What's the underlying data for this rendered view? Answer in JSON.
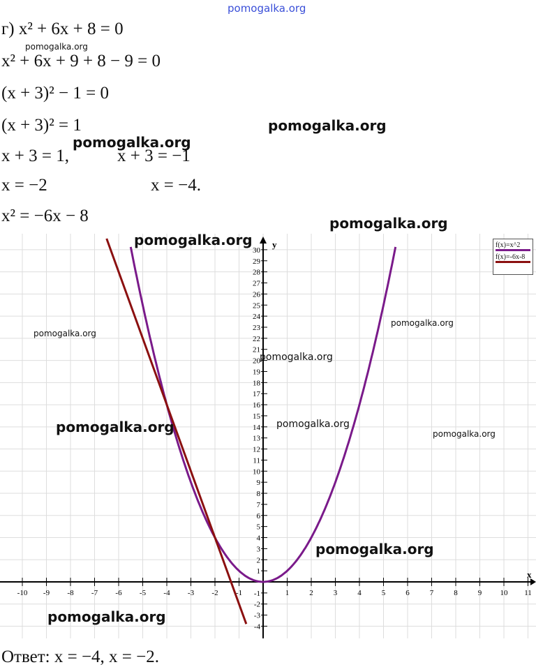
{
  "solution": {
    "lines": [
      "г) x² + 6x + 8 = 0",
      "x² + 6x + 9 + 8 − 9 = 0",
      "(x + 3)² − 1 = 0",
      "(x + 3)² = 1",
      "x + 3 = 1,",
      "x + 3 = −1",
      "x = −2",
      "x = −4.",
      "x² = −6x − 8"
    ],
    "answer": "Ответ: x = −4,        x = −2."
  },
  "watermark": "pomogalka.org",
  "chart_data": {
    "type": "line",
    "xlabel": "x",
    "ylabel": "y",
    "xlim": [
      -10,
      11
    ],
    "ylim": [
      -4,
      30
    ],
    "x_ticks": [
      -10,
      -9,
      -8,
      -7,
      -6,
      -5,
      -4,
      -3,
      -2,
      -1,
      1,
      2,
      3,
      4,
      5,
      6,
      7,
      8,
      9,
      10,
      11
    ],
    "y_ticks": [
      -4,
      -3,
      -2,
      -1,
      1,
      2,
      3,
      4,
      5,
      6,
      7,
      8,
      9,
      10,
      11,
      12,
      13,
      14,
      15,
      16,
      17,
      18,
      19,
      20,
      21,
      22,
      23,
      24,
      25,
      26,
      27,
      28,
      29,
      30
    ],
    "grid": true,
    "legend_position": "top-right",
    "series": [
      {
        "name": "f(x)=x^2",
        "color": "#7a1a8a",
        "x": [
          -5.5,
          -5,
          -4,
          -3,
          -2,
          -1,
          0,
          1,
          2,
          3,
          4,
          5,
          5.5
        ],
        "y": [
          30.25,
          25,
          16,
          9,
          4,
          1,
          0,
          1,
          4,
          9,
          16,
          25,
          30.25
        ]
      },
      {
        "name": "f(x)=-6x-8",
        "color": "#8b1010",
        "x": [
          -6.5,
          -4,
          -2,
          -0.7
        ],
        "y": [
          31,
          16,
          4,
          -3.8
        ]
      }
    ]
  }
}
